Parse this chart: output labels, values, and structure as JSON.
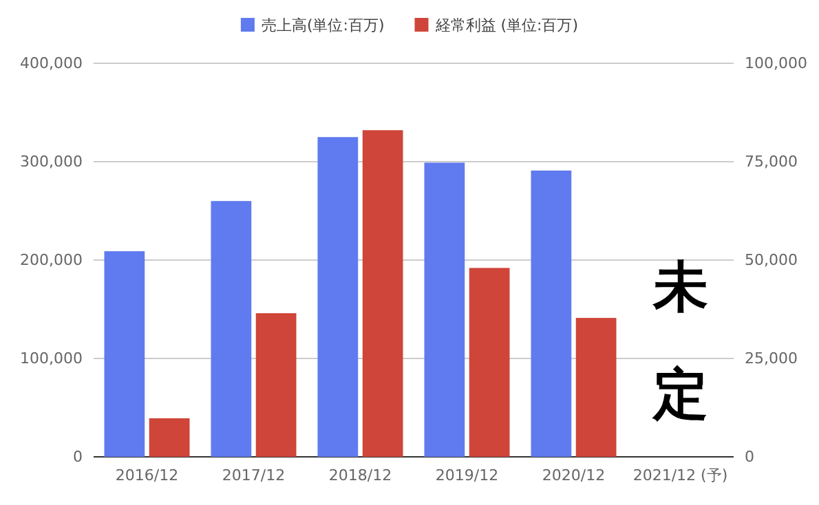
{
  "chart_data": {
    "type": "bar",
    "categories": [
      "2016/12",
      "2017/12",
      "2018/12",
      "2019/12",
      "2020/12",
      "2021/12 (予)"
    ],
    "series": [
      {
        "name": "売上高(単位:百万)",
        "color": "#5f7bef",
        "values": [
          209000,
          260000,
          325000,
          299000,
          291000,
          null
        ]
      },
      {
        "name": "経常利益 (単位:百万)",
        "color": "#cf4539",
        "axis": "y2",
        "values": [
          9800,
          36500,
          83000,
          48000,
          35300,
          null
        ]
      }
    ],
    "ylim": [
      0,
      400000
    ],
    "yticks": [
      {
        "value": 0,
        "label": "0"
      },
      {
        "value": 100000,
        "label": "100,000"
      },
      {
        "value": 200000,
        "label": "200,000"
      },
      {
        "value": 300000,
        "label": "300,000"
      },
      {
        "value": 400000,
        "label": "400,000"
      }
    ],
    "y2lim": [
      0,
      100000
    ],
    "y2ticks": [
      {
        "value": 0,
        "label": "0"
      },
      {
        "value": 25000,
        "label": "25,000"
      },
      {
        "value": 50000,
        "label": "50,000"
      },
      {
        "value": 75000,
        "label": "75,000"
      },
      {
        "value": 100000,
        "label": "100,000"
      }
    ],
    "grid": "y",
    "legend": "top",
    "annotations": [
      "未定"
    ]
  }
}
